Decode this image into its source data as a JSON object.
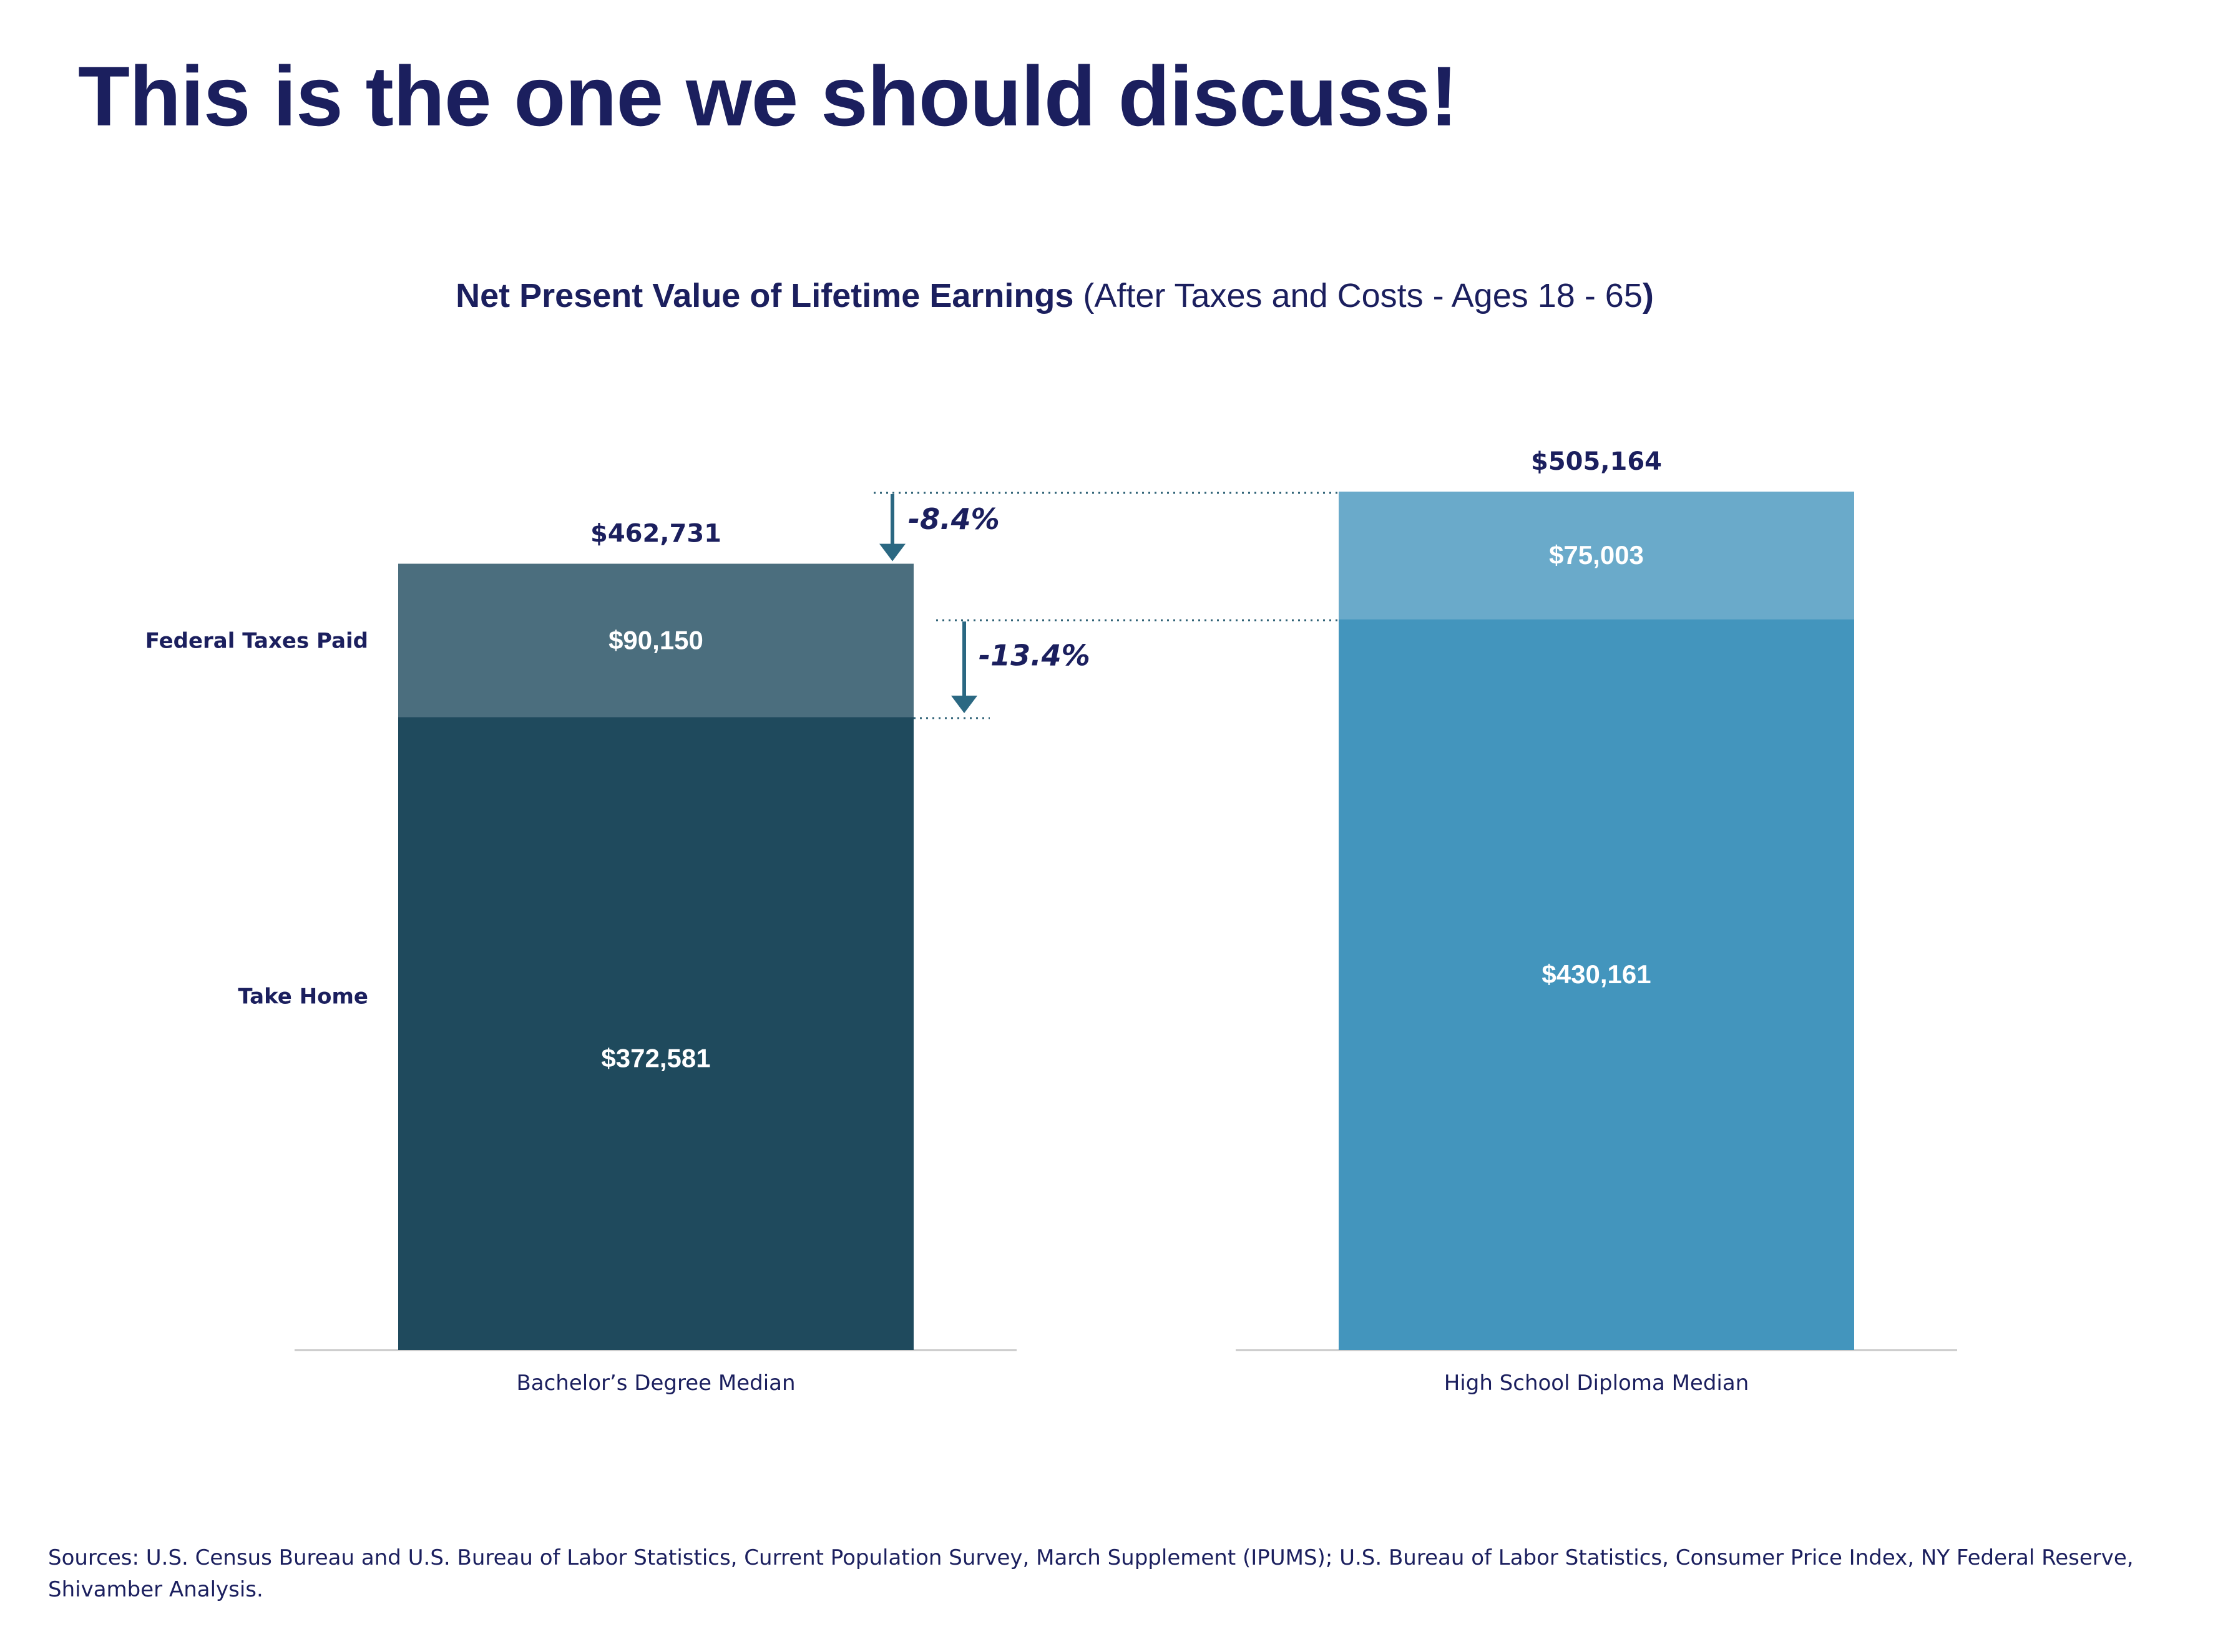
{
  "slide": {
    "title": "This is the one we should discuss!",
    "sources": "Sources: U.S. Census Bureau and U.S. Bureau of Labor Statistics, Current Population Survey, March Supplement (IPUMS); U.S. Bureau of Labor Statistics, Consumer Price Index, NY Federal Reserve, Shivamber Analysis."
  },
  "colors": {
    "title_navy": "#1b1f5e",
    "bachelor_take_home": "#1f4a5d",
    "bachelor_taxes": "#4b6e7e",
    "hs_take_home": "#4395bd",
    "hs_taxes": "#6aaaca",
    "arrow": "#2b6882",
    "axis": "#c8c8c8"
  },
  "chart_data": {
    "type": "bar",
    "stacked": true,
    "title_bold": "Net Present Value of Lifetime Earnings",
    "title_regular": " (After Taxes and Costs - Ages 18 - 65",
    "title_close": ")",
    "categories": [
      "Bachelor’s Degree Median",
      "High School Diploma Median"
    ],
    "series": [
      {
        "name": "Take Home",
        "values": [
          372581,
          430161
        ],
        "labels": [
          "$372,581",
          "$430,161"
        ]
      },
      {
        "name": "Federal Taxes Paid",
        "values": [
          90150,
          75003
        ],
        "labels": [
          "$90,150",
          "$75,003"
        ]
      }
    ],
    "totals": [
      462731,
      505164
    ],
    "total_labels": [
      "$462,731",
      "$505,164"
    ],
    "annotations": [
      {
        "text": "-8.4%",
        "from_value": 505164,
        "to_value": 462731
      },
      {
        "text": "-13.4%",
        "from_value": 430161,
        "to_value": 372581
      }
    ],
    "ylim": [
      0,
      505164
    ],
    "grid": false,
    "legend": "left-inline"
  }
}
